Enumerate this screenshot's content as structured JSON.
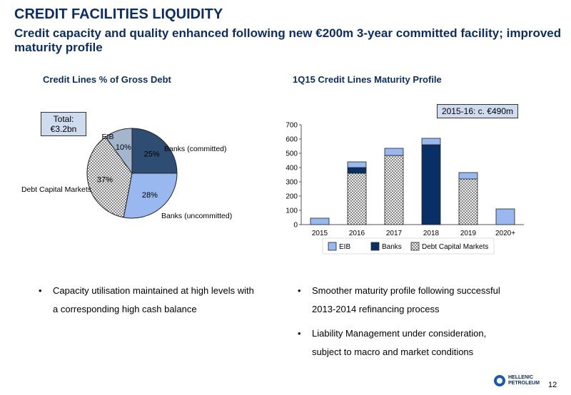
{
  "header": {
    "title": "CREDIT FACILITIES LIQUIDITY",
    "subtitle": "Credit capacity and quality enhanced following new €200m 3-year committed facility; improved maturity profile"
  },
  "pie_panel": {
    "title": "Credit Lines % of Gross Debt",
    "total_line1": "Total:",
    "total_line2": "€3.2bn"
  },
  "bar_panel": {
    "title": "1Q15 Credit Lines Maturity Profile",
    "note": "2015-16: c. €490m"
  },
  "chart_data": [
    {
      "type": "pie",
      "title": "Credit Lines % of Gross Debt",
      "slices": [
        {
          "name": "Banks (committed)",
          "value": 25,
          "label": "25%",
          "color": "#2f4d73",
          "pattern": false
        },
        {
          "name": "Banks (uncommitted)",
          "value": 28,
          "label": "28%",
          "color": "#99b8ef",
          "pattern": false
        },
        {
          "name": "Debt Capital Markets",
          "value": 37,
          "label": "37%",
          "color": "#ffffff",
          "pattern": true
        },
        {
          "name": "EIB",
          "value": 10,
          "label": "10%",
          "color": "#a4b6cd",
          "pattern": false
        }
      ]
    },
    {
      "type": "bar",
      "stacked": true,
      "title": "1Q15 Credit Lines Maturity Profile",
      "categories": [
        "2015",
        "2016",
        "2017",
        "2018",
        "2019",
        "2020+"
      ],
      "ylim": [
        0,
        700
      ],
      "yticks": [
        "0",
        "100",
        "200",
        "300",
        "400",
        "500",
        "600",
        "700"
      ],
      "legend_position": "bottom",
      "series": [
        {
          "name": "Debt Capital Markets",
          "color": "#ffffff",
          "pattern": true,
          "values": [
            0,
            360,
            485,
            0,
            320,
            0
          ]
        },
        {
          "name": "Banks",
          "color": "#0a2f66",
          "pattern": false,
          "values": [
            0,
            40,
            0,
            560,
            0,
            0
          ]
        },
        {
          "name": "EIB",
          "color": "#99b8ef",
          "pattern": false,
          "values": [
            45,
            40,
            50,
            45,
            45,
            110
          ]
        }
      ],
      "legend": [
        "EIB",
        "Banks",
        "Debt Capital Markets"
      ]
    }
  ],
  "bullets_left": [
    "Capacity utilisation maintained at high levels with a corresponding high cash balance"
  ],
  "bullets_right": [
    "Smoother maturity profile following successful 2013-2014 refinancing process",
    "Liability Management under consideration, subject to macro and market conditions"
  ],
  "footer": {
    "logo_line1": "HELLENIC",
    "logo_line2": "PETROLEUM",
    "page_number": "12"
  }
}
